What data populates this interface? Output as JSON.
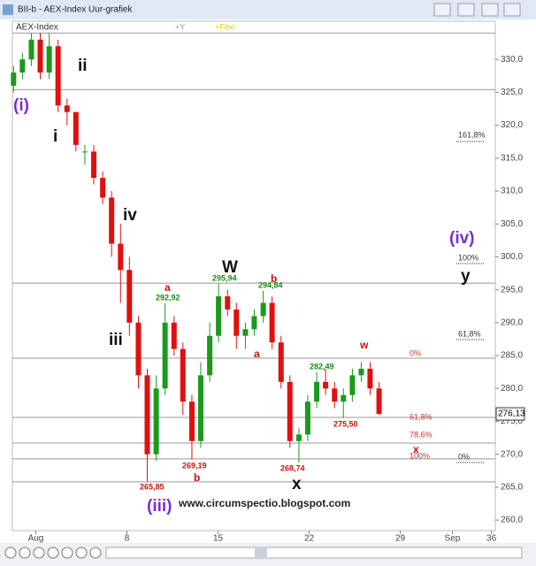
{
  "window": {
    "title": "BII-b - AEX-Index Uur-grafiek"
  },
  "chart_data": {
    "type": "candlestick",
    "legend": [
      "AEX-Index",
      "+Y",
      "+Fibo"
    ],
    "x": [
      -0.71,
      -0.03,
      0.66,
      1.34,
      2.03,
      2.71,
      3.4,
      4.08,
      4.77,
      5.45,
      6.14,
      6.82,
      7.51,
      8.19,
      8.88,
      9.56,
      10.25,
      10.93,
      11.62,
      12.3,
      12.99,
      13.67,
      14.36,
      15.04,
      15.73,
      16.41,
      17.1,
      17.78,
      18.47,
      19.15,
      19.84,
      20.52,
      21.21,
      21.89,
      22.58,
      23.26,
      23.95,
      24.63,
      25.32,
      26.0,
      26.68,
      27.37
    ],
    "open": [
      326,
      328,
      330,
      333,
      328,
      332,
      323,
      322,
      316,
      316,
      312,
      309,
      302,
      298,
      290,
      282,
      270,
      280,
      290,
      286,
      278,
      272,
      282,
      288,
      294,
      292,
      288,
      289,
      291,
      293,
      287,
      281,
      272,
      273,
      278,
      281,
      280,
      278,
      279,
      282,
      283,
      280
    ],
    "high": [
      329,
      331,
      334,
      334,
      334,
      333,
      324,
      322,
      317,
      317,
      313,
      310,
      305,
      300,
      291,
      283,
      282,
      292.92,
      291,
      287,
      279,
      284,
      290,
      295.94,
      295,
      293,
      290,
      292,
      294.84,
      294,
      288,
      282,
      274,
      279,
      282.49,
      283,
      281,
      280,
      283,
      284,
      284,
      281
    ],
    "low": [
      325,
      327,
      329,
      327,
      327,
      322,
      320,
      316,
      314,
      311,
      308,
      300,
      293,
      288,
      280,
      265.85,
      269,
      279,
      285,
      276,
      269.19,
      271,
      281,
      287,
      291,
      286,
      286,
      288,
      290,
      286,
      280,
      271,
      268.74,
      272,
      277,
      279,
      277,
      275.5,
      278,
      281,
      279,
      276
    ],
    "close": [
      328,
      330,
      333,
      328,
      332,
      323,
      322,
      317,
      316,
      312,
      309,
      302,
      298,
      290,
      282,
      270,
      280,
      290,
      286,
      278,
      272,
      282,
      288,
      294,
      292,
      288,
      289,
      291,
      293,
      287,
      281,
      272,
      273,
      278,
      281,
      280,
      278,
      279,
      282,
      283,
      280,
      276.13
    ],
    "up_color": "#1b9a1b",
    "down_color": "#e01010",
    "xlim": [
      -0.8,
      36.3
    ],
    "xticks": [
      {
        "value": 1,
        "label": "Aug"
      },
      8,
      15,
      22,
      29,
      {
        "value": 33,
        "label": "Sep"
      },
      36
    ],
    "ylim": [
      258.4,
      335.8
    ],
    "yticks": [
      {
        "value": 260,
        "label": "260,0"
      },
      {
        "value": 265,
        "label": "265,0"
      },
      {
        "value": 270,
        "label": "270,0"
      },
      {
        "value": 275,
        "label": "275,0"
      },
      {
        "value": 280,
        "label": "280,0"
      },
      {
        "value": 285,
        "label": "285,0"
      },
      {
        "value": 290,
        "label": "290,0"
      },
      {
        "value": 295,
        "label": "295,0"
      },
      {
        "value": 300,
        "label": "300,0"
      },
      {
        "value": 305,
        "label": "305,0"
      },
      {
        "value": 310,
        "label": "310,0"
      },
      {
        "value": 315,
        "label": "315,0"
      },
      {
        "value": 320,
        "label": "320,0"
      },
      {
        "value": 325,
        "label": "325,0"
      },
      {
        "value": 330,
        "label": "330,0"
      }
    ],
    "levels": [
      334,
      325.4,
      296,
      284.6,
      275.6,
      271.7,
      269.3,
      265.8
    ],
    "last_price": {
      "value": 276.13,
      "label": "276,13"
    },
    "annotations": [
      "(i)",
      "ii",
      "i",
      "iv",
      "iii",
      "(iii)",
      "W",
      "a",
      "292,92",
      "295,94",
      "294,84",
      "b",
      "a",
      "282,49",
      "w",
      "275,50",
      "265,85",
      "b",
      "269,19",
      "268,74",
      "x",
      "x",
      "(iv)",
      "y",
      "161,8%",
      "100%",
      "61,8%",
      "0%",
      "61,8%",
      "78,6%",
      "100%",
      "0%",
      "www.circumspectio.blogspot.com"
    ]
  }
}
